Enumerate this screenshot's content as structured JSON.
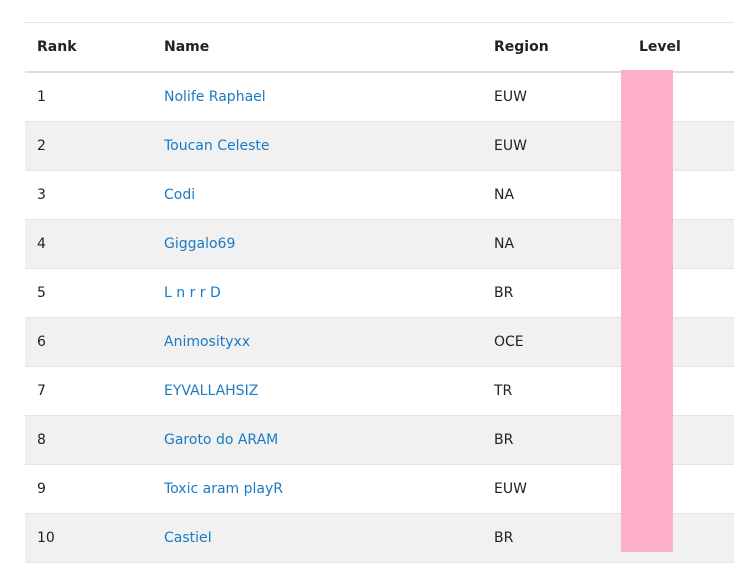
{
  "top_link": "…",
  "table": {
    "headers": {
      "rank": "Rank",
      "name": "Name",
      "region": "Region",
      "level": "Level"
    },
    "rows": [
      {
        "rank": "1",
        "name": "Nolife Raphael",
        "region": "EUW"
      },
      {
        "rank": "2",
        "name": "Toucan Celeste",
        "region": "EUW"
      },
      {
        "rank": "3",
        "name": "Codi",
        "region": "NA"
      },
      {
        "rank": "4",
        "name": "Giggalo69",
        "region": "NA"
      },
      {
        "rank": "5",
        "name": "L n r r D",
        "region": "BR"
      },
      {
        "rank": "6",
        "name": "Animosityxx",
        "region": "OCE"
      },
      {
        "rank": "7",
        "name": "EYVALLAHSIZ",
        "region": "TR"
      },
      {
        "rank": "8",
        "name": "Garoto do ARAM",
        "region": "BR"
      },
      {
        "rank": "9",
        "name": "Toxic aram playR",
        "region": "EUW"
      },
      {
        "rank": "10",
        "name": "CastieI",
        "region": "BR"
      }
    ]
  },
  "colors": {
    "link": "#1a7bc4",
    "level_overlay": "#fdaecb",
    "row_stripe": "#f1f1f1"
  }
}
